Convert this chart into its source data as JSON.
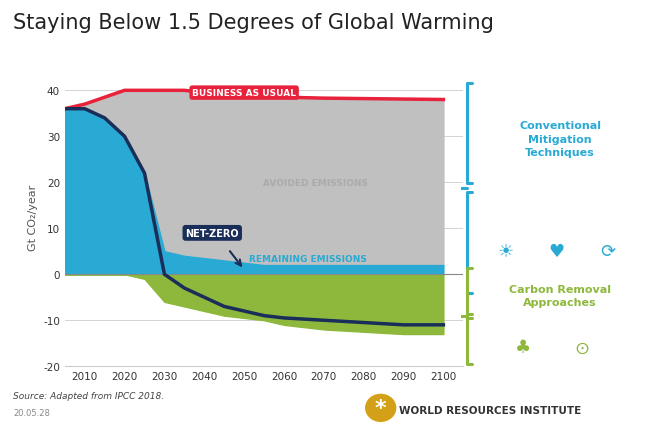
{
  "title": "Staying Below 1.5 Degrees of Global Warming",
  "title_fontsize": 15,
  "ylabel": "Gt CO₂/year",
  "ylim": [
    -20,
    45
  ],
  "xlim": [
    2005,
    2105
  ],
  "xticks": [
    2010,
    2020,
    2030,
    2040,
    2050,
    2060,
    2070,
    2080,
    2090,
    2100
  ],
  "yticks": [
    -20,
    -10,
    0,
    10,
    20,
    30,
    40
  ],
  "bg_color": "#ffffff",
  "plot_bg_color": "#ffffff",
  "grid_color": "#cccccc",
  "years": [
    2005,
    2010,
    2015,
    2020,
    2025,
    2030,
    2035,
    2040,
    2045,
    2050,
    2055,
    2060,
    2070,
    2080,
    2090,
    2100
  ],
  "bau_line": [
    36,
    37,
    38.5,
    40,
    40,
    40,
    40,
    39.5,
    39,
    38.8,
    38.6,
    38.5,
    38.3,
    38.2,
    38.1,
    38
  ],
  "net_zero_line": [
    36,
    36,
    34,
    30,
    22,
    0,
    -3,
    -5,
    -7,
    -8,
    -9,
    -9.5,
    -10,
    -10.5,
    -11,
    -11
  ],
  "remaining_emissions_top": [
    36,
    36,
    34,
    30,
    22,
    5,
    4,
    3.5,
    3,
    2.5,
    2,
    2,
    2,
    2,
    2,
    2
  ],
  "negative_emissions_bottom": [
    0,
    0,
    0,
    0,
    -1,
    -6,
    -7,
    -8,
    -9,
    -9.5,
    -10,
    -11,
    -12,
    -12.5,
    -13,
    -13
  ],
  "colors": {
    "bau_line": "#e8223a",
    "bau_fill": "#c0c0c0",
    "remaining": "#29aad4",
    "net_zero_line": "#1a2e5a",
    "negative": "#8db83b",
    "bau_label_bg": "#e8223a",
    "bau_label_text": "#ffffff",
    "net_zero_label_bg": "#1a2e5a",
    "net_zero_label_text": "#ffffff",
    "avoided_text": "#aaaaaa",
    "remaining_text": "#29aad4",
    "negative_text": "#8db83b",
    "bracket_blue": "#29aad4",
    "bracket_green": "#8db83b",
    "conventional_text": "#29aad4",
    "carbon_removal_text": "#8db83b",
    "side_bg_blue": "#dff0f8",
    "side_bg_green": "#eef3d8"
  },
  "source_text": "Source: Adapted from IPCC 2018.",
  "version_text": "20.05.28",
  "wri_text": "WORLD RESOURCES INSTITUTE"
}
